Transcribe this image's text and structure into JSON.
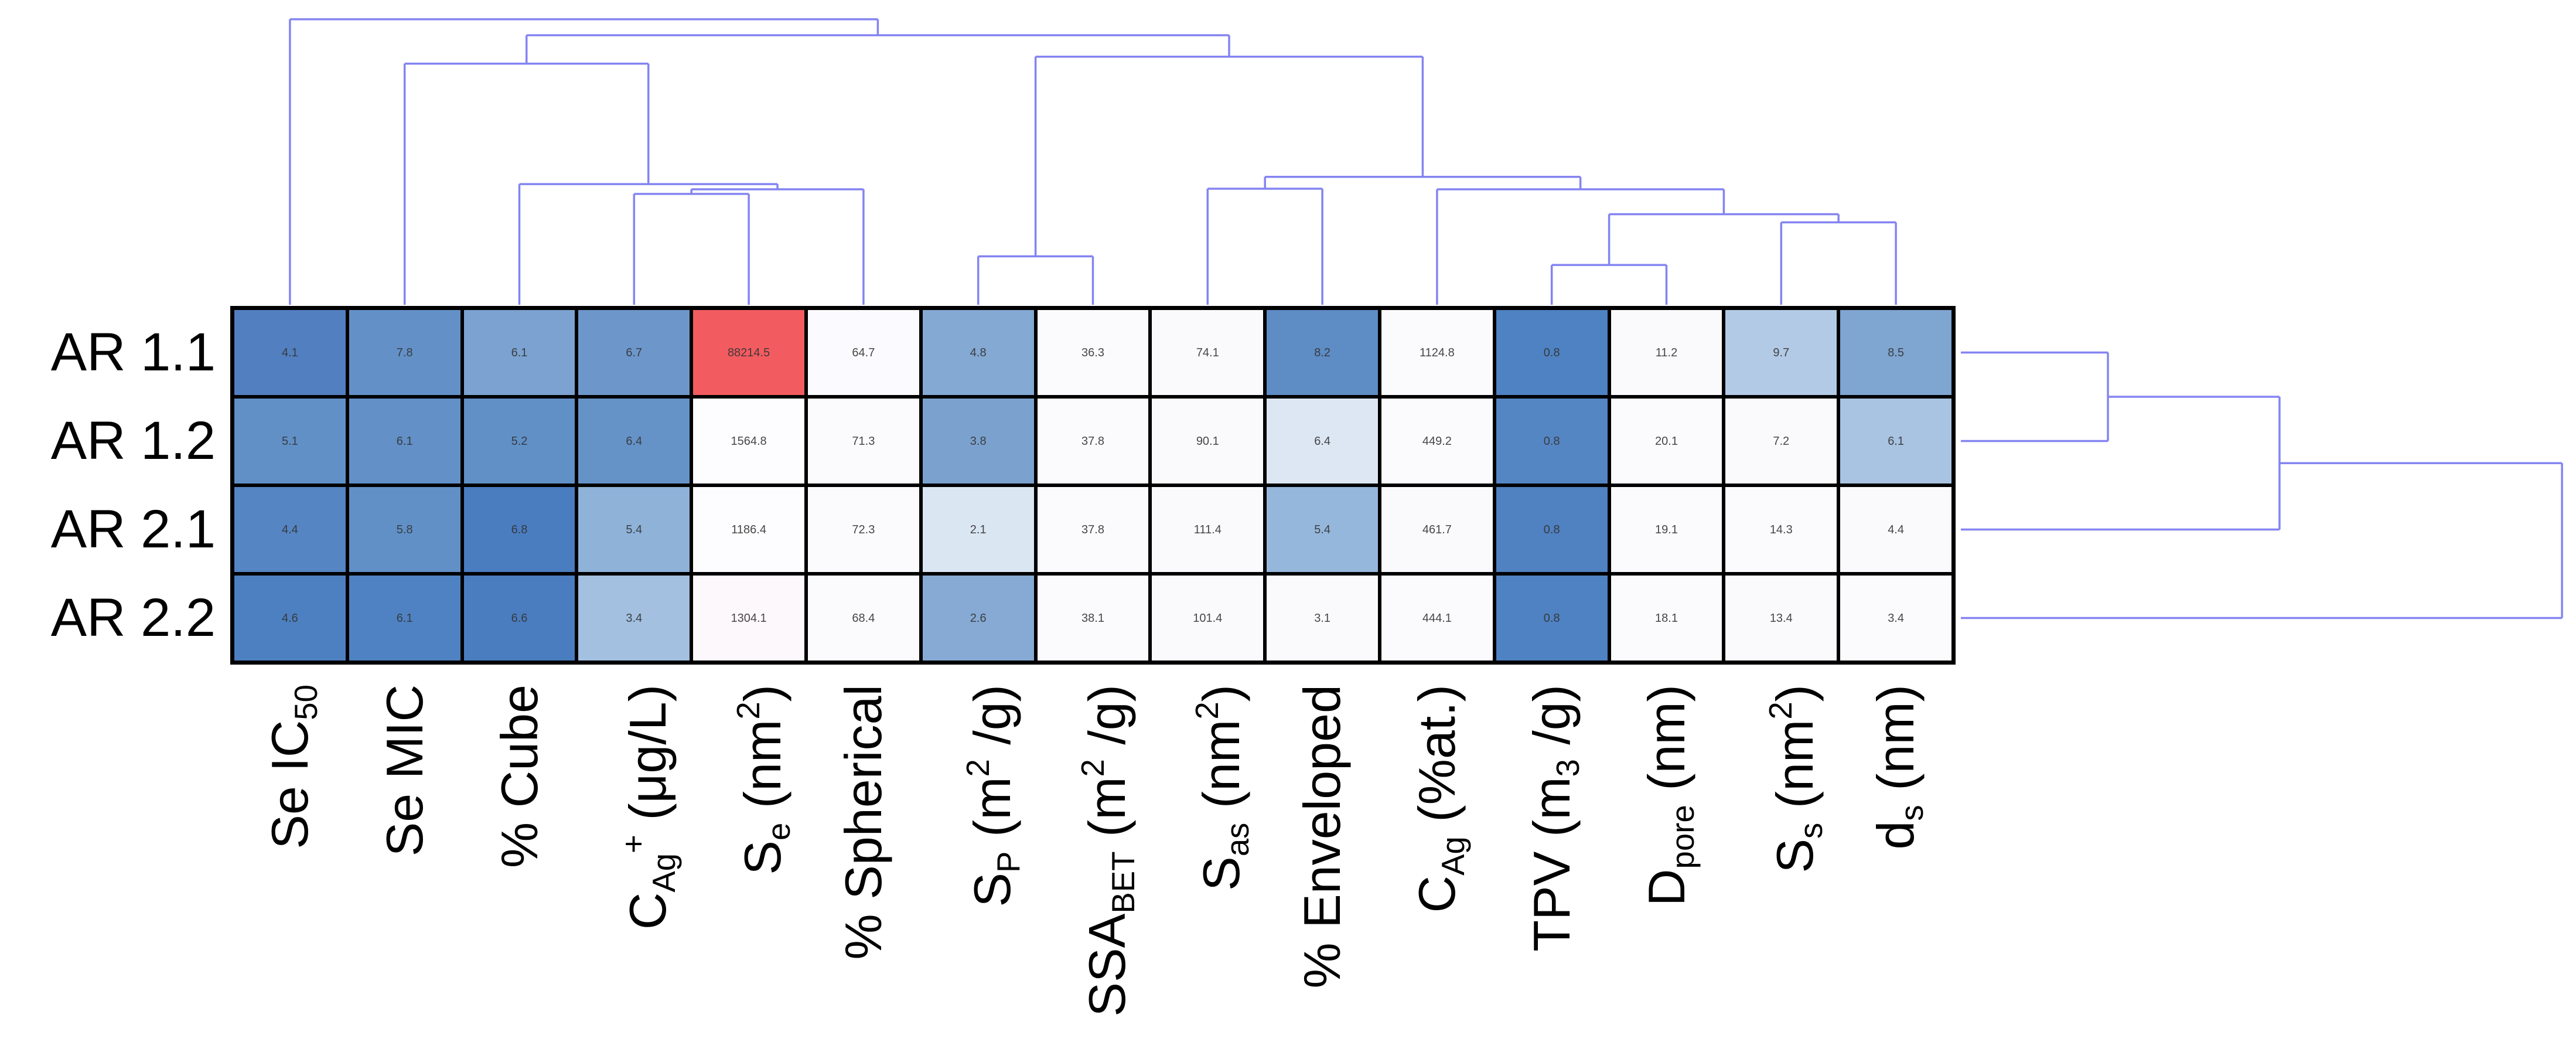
{
  "figure": {
    "kind": "hierarchical clustermap",
    "background": "#ffffff",
    "dendrogram_line_color": "#8484f2",
    "grid_line_color": "#000000"
  },
  "chart_data": {
    "type": "heatmap",
    "subtype": "clustermap-with-dendrograms",
    "title": "",
    "xlabel": "",
    "ylabel": "",
    "legend": "none",
    "rows": [
      "AR 1.1",
      "AR 1.2",
      "AR 2.1",
      "AR 2.2"
    ],
    "columns": [
      "Se IC50",
      "Se MIC",
      "% Cube",
      "CAg+ (μg/L)",
      "Se (nm2)",
      "% Spherical",
      "SP (m2 /g)",
      "SSABET (m2 /g)",
      "Sas (nm2)",
      "% Enveloped",
      "CAg (%at.)",
      "TPV (m3 /g)",
      "Dpore (nm)",
      "Ss (nm2)",
      "ds (nm)"
    ],
    "col_labels_rich": [
      [
        {
          "t": "Se IC"
        },
        {
          "t": "50",
          "m": "sub"
        }
      ],
      [
        {
          "t": "Se MIC"
        }
      ],
      [
        {
          "t": "% Cube"
        }
      ],
      [
        {
          "t": "C"
        },
        {
          "t": "Ag",
          "m": "sub"
        },
        {
          "t": "+",
          "m": "sup"
        },
        {
          "t": " (μg/L)"
        }
      ],
      [
        {
          "t": "S"
        },
        {
          "t": "e",
          "m": "sub"
        },
        {
          "t": " (nm"
        },
        {
          "t": "2",
          "m": "sup"
        },
        {
          "t": ")"
        }
      ],
      [
        {
          "t": "% Spherical"
        }
      ],
      [
        {
          "t": "S"
        },
        {
          "t": "P",
          "m": "sub"
        },
        {
          "t": " (m"
        },
        {
          "t": "2",
          "m": "sup"
        },
        {
          "t": " /g)"
        }
      ],
      [
        {
          "t": "SSA"
        },
        {
          "t": "BET",
          "m": "sub"
        },
        {
          "t": " (m"
        },
        {
          "t": "2",
          "m": "sup"
        },
        {
          "t": " /g)"
        }
      ],
      [
        {
          "t": "S"
        },
        {
          "t": "as",
          "m": "sub"
        },
        {
          "t": " (nm"
        },
        {
          "t": "2",
          "m": "sup"
        },
        {
          "t": ")"
        }
      ],
      [
        {
          "t": "% Enveloped"
        }
      ],
      [
        {
          "t": "C"
        },
        {
          "t": "Ag",
          "m": "sub"
        },
        {
          "t": " (%at.)"
        }
      ],
      [
        {
          "t": "TPV (m"
        },
        {
          "t": "3",
          "m": "sub"
        },
        {
          "t": " /g)"
        }
      ],
      [
        {
          "t": "D"
        },
        {
          "t": "pore",
          "m": "sub"
        },
        {
          "t": " (nm)"
        }
      ],
      [
        {
          "t": "S"
        },
        {
          "t": "s",
          "m": "sub"
        },
        {
          "t": " (nm"
        },
        {
          "t": "2",
          "m": "sup"
        },
        {
          "t": ")"
        }
      ],
      [
        {
          "t": "d"
        },
        {
          "t": "s",
          "m": "sub"
        },
        {
          "t": " (nm)"
        }
      ]
    ],
    "values": [
      [
        "4.1",
        "7.8",
        "6.1",
        "6.7",
        "88214.5",
        "64.7",
        "4.8",
        "36.3",
        "74.1",
        "8.2",
        "1124.8",
        "0.8",
        "11.2",
        "9.7",
        "8.5"
      ],
      [
        "5.1",
        "6.1",
        "5.2",
        "6.4",
        "1564.8",
        "71.3",
        "3.8",
        "37.8",
        "90.1",
        "6.4",
        "449.2",
        "0.8",
        "20.1",
        "7.2",
        "6.1"
      ],
      [
        "4.4",
        "5.8",
        "6.8",
        "5.4",
        "1186.4",
        "72.3",
        "2.1",
        "37.8",
        "111.4",
        "5.4",
        "461.7",
        "0.8",
        "19.1",
        "14.3",
        "4.4"
      ],
      [
        "4.6",
        "6.1",
        "6.6",
        "3.4",
        "1304.1",
        "68.4",
        "2.6",
        "38.1",
        "101.4",
        "3.1",
        "444.1",
        "0.8",
        "18.1",
        "13.4",
        "3.4"
      ]
    ],
    "cell_colors": [
      [
        "#527fc0",
        "#6391c7",
        "#7ba2d0",
        "#6d97ca",
        "#f25c60",
        "#fbfafe",
        "#84a9d3",
        "#fbfafd",
        "#fafafd",
        "#5e8cc4",
        "#fbfafd",
        "#4e82c2",
        "#fafafd",
        "#b3cae6",
        "#7fa5d1"
      ],
      [
        "#6190c7",
        "#6290c7",
        "#6190c7",
        "#6593c8",
        "#fdfcff",
        "#fbfbfe",
        "#7ba2cf",
        "#fbfafd",
        "#fafafd",
        "#dce7f3",
        "#fbfafd",
        "#5586c4",
        "#fbfafd",
        "#fafafd",
        "#a9c3e2"
      ],
      [
        "#5585c3",
        "#6190c7",
        "#4a7cc0",
        "#8fb2d9",
        "#fdfcfe",
        "#fbfbfe",
        "#dbe6f3",
        "#fbfafd",
        "#fafafd",
        "#96b7dc",
        "#fafafd",
        "#5081c1",
        "#fbfbfe",
        "#fbfafd",
        "#fafafd"
      ],
      [
        "#4d80c1",
        "#4f82c2",
        "#4a7dc0",
        "#a3c0e0",
        "#fdf8fb",
        "#fbfbfe",
        "#86aad4",
        "#fbfafd",
        "#fafafd",
        "#fafafd",
        "#fbfafd",
        "#4f82c2",
        "#fbfbfe",
        "#fafafd",
        "#fbfbfe"
      ]
    ],
    "colormap_note": "diverging blue (low) to white to red (high); single red outlier cell at row AR 1.1 / Se (nm2)",
    "col_dendrogram": {
      "orientation": "top",
      "merges": [
        {
          "id": "M0",
          "a": "L3",
          "b": "L4",
          "h": 0.382
        },
        {
          "id": "M1",
          "a": "M0",
          "b": "L5",
          "h": 0.398
        },
        {
          "id": "M2",
          "a": "L2",
          "b": "M1",
          "h": 0.416
        },
        {
          "id": "M3",
          "a": "L1",
          "b": "M2",
          "h": 0.831
        },
        {
          "id": "M4",
          "a": "L11",
          "b": "L12",
          "h": 0.137
        },
        {
          "id": "M5",
          "a": "L13",
          "b": "L14",
          "h": 0.284
        },
        {
          "id": "M6",
          "a": "M4",
          "b": "M5",
          "h": 0.312
        },
        {
          "id": "M7",
          "a": "L10",
          "b": "M6",
          "h": 0.398
        },
        {
          "id": "M8",
          "a": "L8",
          "b": "L9",
          "h": 0.4
        },
        {
          "id": "M9",
          "a": "M8",
          "b": "M7",
          "h": 0.441
        },
        {
          "id": "M10",
          "a": "L6",
          "b": "L7",
          "h": 0.167
        },
        {
          "id": "M11",
          "a": "M10",
          "b": "M9",
          "h": 0.855
        },
        {
          "id": "M12",
          "a": "M3",
          "b": "M11",
          "h": 0.929
        },
        {
          "id": "M13",
          "a": "L0",
          "b": "M12",
          "h": 0.984
        }
      ]
    },
    "row_dendrogram": {
      "orientation": "right",
      "merges": [
        {
          "id": "N0",
          "a": "L0",
          "b": "L1",
          "h": 0.24
        },
        {
          "id": "N1",
          "a": "N0",
          "b": "L2",
          "h": 0.52
        },
        {
          "id": "N2",
          "a": "N1",
          "b": "L3",
          "h": 0.981
        }
      ]
    }
  }
}
